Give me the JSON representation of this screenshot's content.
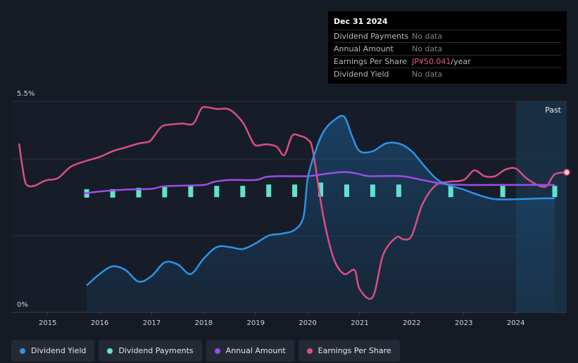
{
  "tooltip": {
    "date": "Dec 31 2024",
    "rows": [
      {
        "label": "Dividend Payments",
        "value": "No data"
      },
      {
        "label": "Annual Amount",
        "value": "No data"
      },
      {
        "label": "Earnings Per Share",
        "value": "JP¥50.041",
        "unit": "/year"
      },
      {
        "label": "Dividend Yield",
        "value": "No data"
      }
    ]
  },
  "legend": [
    {
      "label": "Dividend Yield",
      "color": "#2e93e6"
    },
    {
      "label": "Dividend Payments",
      "color": "#5fe3d0"
    },
    {
      "label": "Annual Amount",
      "color": "#9d4de6"
    },
    {
      "label": "Earnings Per Share",
      "color": "#d94f84"
    }
  ],
  "chart_data": {
    "type": "line",
    "y_axis": {
      "top_label": "5.5%",
      "bottom_label": "0%",
      "ylim": [
        0,
        5.5
      ]
    },
    "x_ticks": [
      "2015",
      "2016",
      "2017",
      "2018",
      "2019",
      "2020",
      "2021",
      "2022",
      "2023",
      "2024"
    ],
    "x_range": [
      2014.3,
      2024.98
    ],
    "past_label": "Past",
    "past_region_start": 2024.0,
    "series": [
      {
        "name": "Dividend Yield",
        "unit": "%",
        "color": "#2e93e6",
        "fill": true,
        "points": [
          [
            2015.75,
            0.7
          ],
          [
            2016.0,
            1.0
          ],
          [
            2016.25,
            1.2
          ],
          [
            2016.5,
            1.1
          ],
          [
            2016.75,
            0.8
          ],
          [
            2017.0,
            0.95
          ],
          [
            2017.25,
            1.3
          ],
          [
            2017.5,
            1.25
          ],
          [
            2017.75,
            1.0
          ],
          [
            2018.0,
            1.4
          ],
          [
            2018.25,
            1.7
          ],
          [
            2018.5,
            1.7
          ],
          [
            2018.75,
            1.65
          ],
          [
            2019.0,
            1.8
          ],
          [
            2019.25,
            2.0
          ],
          [
            2019.5,
            2.05
          ],
          [
            2019.75,
            2.15
          ],
          [
            2019.92,
            2.5
          ],
          [
            2020.0,
            3.5
          ],
          [
            2020.15,
            4.2
          ],
          [
            2020.3,
            4.7
          ],
          [
            2020.5,
            5.0
          ],
          [
            2020.7,
            5.1
          ],
          [
            2020.85,
            4.6
          ],
          [
            2021.0,
            4.2
          ],
          [
            2021.25,
            4.2
          ],
          [
            2021.5,
            4.4
          ],
          [
            2021.75,
            4.4
          ],
          [
            2022.0,
            4.2
          ],
          [
            2022.25,
            3.8
          ],
          [
            2022.5,
            3.45
          ],
          [
            2022.75,
            3.3
          ],
          [
            2023.0,
            3.2
          ],
          [
            2023.3,
            3.05
          ],
          [
            2023.6,
            2.95
          ],
          [
            2024.0,
            2.95
          ],
          [
            2024.5,
            2.97
          ],
          [
            2024.75,
            2.97
          ]
        ]
      },
      {
        "name": "Dividend Payments",
        "unit": "%",
        "color": "#5fe3d0",
        "type": "bar",
        "points": [
          [
            2015.75,
            3.1
          ],
          [
            2016.25,
            3.1
          ],
          [
            2016.75,
            3.12
          ],
          [
            2017.25,
            3.13
          ],
          [
            2017.75,
            3.15
          ],
          [
            2018.25,
            3.15
          ],
          [
            2018.75,
            3.15
          ],
          [
            2019.25,
            3.17
          ],
          [
            2019.75,
            3.17
          ],
          [
            2020.25,
            3.2
          ],
          [
            2020.75,
            3.17
          ],
          [
            2021.25,
            3.17
          ],
          [
            2021.75,
            3.17
          ],
          [
            2022.75,
            3.15
          ],
          [
            2023.75,
            3.15
          ],
          [
            2024.75,
            3.15
          ]
        ]
      },
      {
        "name": "Annual Amount",
        "unit": "%",
        "color": "#9d4de6",
        "points": [
          [
            2015.7,
            3.1
          ],
          [
            2016.0,
            3.15
          ],
          [
            2016.5,
            3.2
          ],
          [
            2017.0,
            3.22
          ],
          [
            2017.2,
            3.28
          ],
          [
            2017.5,
            3.3
          ],
          [
            2018.0,
            3.32
          ],
          [
            2018.2,
            3.4
          ],
          [
            2018.5,
            3.45
          ],
          [
            2019.0,
            3.45
          ],
          [
            2019.2,
            3.53
          ],
          [
            2019.5,
            3.55
          ],
          [
            2020.0,
            3.55
          ],
          [
            2020.3,
            3.6
          ],
          [
            2020.6,
            3.65
          ],
          [
            2020.8,
            3.65
          ],
          [
            2021.0,
            3.6
          ],
          [
            2021.2,
            3.55
          ],
          [
            2021.8,
            3.55
          ],
          [
            2022.2,
            3.45
          ],
          [
            2022.6,
            3.35
          ],
          [
            2023.0,
            3.32
          ],
          [
            2023.5,
            3.32
          ],
          [
            2024.0,
            3.32
          ],
          [
            2024.75,
            3.32
          ]
        ]
      },
      {
        "name": "Earnings Per Share",
        "unit": "relative",
        "color": "#d94f84",
        "points": [
          [
            2014.45,
            4.4
          ],
          [
            2014.55,
            3.5
          ],
          [
            2014.62,
            3.3
          ],
          [
            2014.75,
            3.3
          ],
          [
            2014.9,
            3.4
          ],
          [
            2015.0,
            3.45
          ],
          [
            2015.2,
            3.5
          ],
          [
            2015.45,
            3.8
          ],
          [
            2015.75,
            3.95
          ],
          [
            2016.0,
            4.05
          ],
          [
            2016.25,
            4.2
          ],
          [
            2016.5,
            4.3
          ],
          [
            2016.75,
            4.4
          ],
          [
            2016.95,
            4.45
          ],
          [
            2017.05,
            4.6
          ],
          [
            2017.2,
            4.85
          ],
          [
            2017.4,
            4.9
          ],
          [
            2017.6,
            4.92
          ],
          [
            2017.8,
            4.92
          ],
          [
            2017.95,
            5.3
          ],
          [
            2018.05,
            5.35
          ],
          [
            2018.25,
            5.3
          ],
          [
            2018.5,
            5.28
          ],
          [
            2018.75,
            4.95
          ],
          [
            2018.9,
            4.55
          ],
          [
            2019.0,
            4.35
          ],
          [
            2019.2,
            4.38
          ],
          [
            2019.4,
            4.32
          ],
          [
            2019.55,
            4.1
          ],
          [
            2019.7,
            4.6
          ],
          [
            2019.85,
            4.6
          ],
          [
            2020.0,
            4.5
          ],
          [
            2020.1,
            4.2
          ],
          [
            2020.3,
            2.5
          ],
          [
            2020.5,
            1.4
          ],
          [
            2020.7,
            1.0
          ],
          [
            2020.9,
            1.1
          ],
          [
            2021.0,
            0.6
          ],
          [
            2021.25,
            0.4
          ],
          [
            2021.45,
            1.5
          ],
          [
            2021.7,
            1.95
          ],
          [
            2021.85,
            1.9
          ],
          [
            2022.0,
            2.0
          ],
          [
            2022.2,
            2.8
          ],
          [
            2022.45,
            3.3
          ],
          [
            2022.7,
            3.4
          ],
          [
            2023.0,
            3.45
          ],
          [
            2023.2,
            3.7
          ],
          [
            2023.4,
            3.55
          ],
          [
            2023.6,
            3.55
          ],
          [
            2023.8,
            3.72
          ],
          [
            2024.0,
            3.75
          ],
          [
            2024.2,
            3.5
          ],
          [
            2024.45,
            3.3
          ],
          [
            2024.6,
            3.3
          ],
          [
            2024.75,
            3.6
          ],
          [
            2024.98,
            3.65
          ]
        ]
      }
    ]
  }
}
